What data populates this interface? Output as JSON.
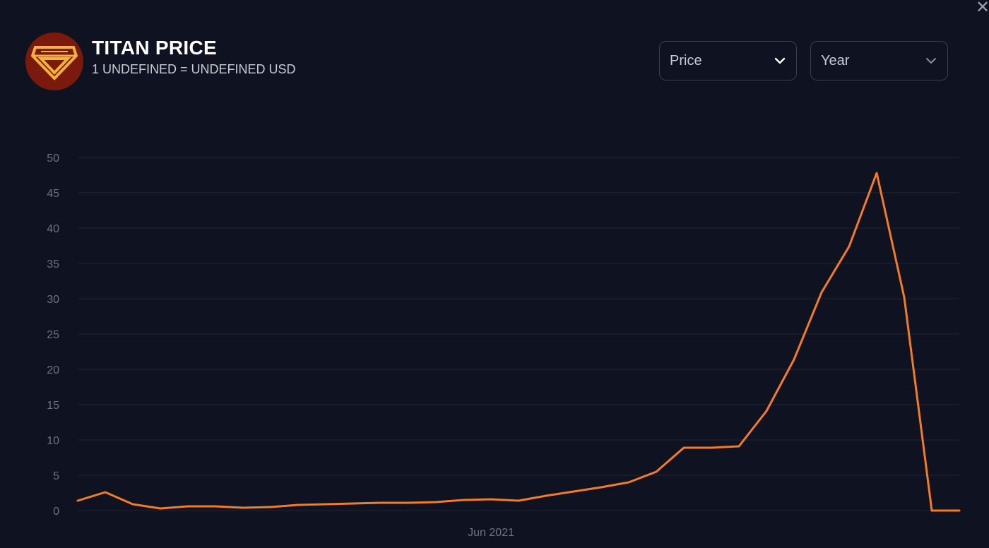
{
  "header": {
    "title": "TITAN PRICE",
    "subtitle": "1 UNDEFINED = UNDEFINED USD"
  },
  "controls": {
    "metric_select": "Price",
    "range_select": "Year"
  },
  "icons": {
    "logo": "titan-diamond-logo-icon",
    "close": "close-icon",
    "chevron": "chevron-down-icon"
  },
  "colors": {
    "background": "#0f1220",
    "line": "#f57c1f",
    "logo_bg": "#7a1a0c",
    "logo_fg": "#f2b13a",
    "grid": "#1f2433"
  },
  "chart_data": {
    "type": "line",
    "title": "",
    "xlabel": "",
    "ylabel": "",
    "ylim": [
      0,
      50
    ],
    "yticks": [
      0,
      5,
      10,
      15,
      20,
      25,
      30,
      35,
      40,
      45,
      50
    ],
    "x_tick_labels": [
      {
        "label": "Jun 2021",
        "index": 15
      }
    ],
    "grid": true,
    "series": [
      {
        "values": [
          1.4,
          2.6,
          0.9,
          0.3,
          0.6,
          0.6,
          0.4,
          0.5,
          0.8,
          0.9,
          1.0,
          1.1,
          1.1,
          1.2,
          1.5,
          1.6,
          1.4,
          2.1,
          2.7,
          3.3,
          4.0,
          5.5,
          8.9,
          8.9,
          9.1,
          14.1,
          21.4,
          30.9,
          37.4,
          47.8,
          30.2,
          0.0,
          0.0
        ]
      }
    ]
  }
}
